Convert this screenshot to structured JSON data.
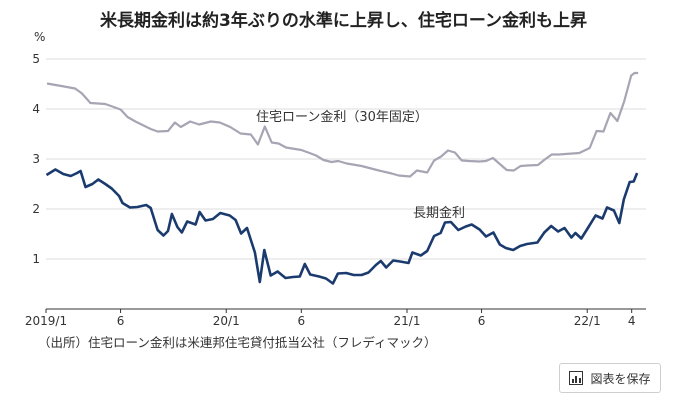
{
  "chart_data": {
    "type": "line",
    "title": "米長期金利は約3年ぶりの水準に上昇し、住宅ローン金利も上昇",
    "unit_label": "%",
    "ylim": [
      0,
      5
    ],
    "y_ticks": [
      1,
      2,
      3,
      4,
      5
    ],
    "x_range": [
      "2019-01-01",
      "2022-04-30"
    ],
    "x_ticks": [
      {
        "date": "2019-01-01",
        "label": "2019/1"
      },
      {
        "date": "2019-06-01",
        "label": "6"
      },
      {
        "date": "2020-01-01",
        "label": "20/1"
      },
      {
        "date": "2020-06-01",
        "label": "6"
      },
      {
        "date": "2021-01-01",
        "label": "21/1"
      },
      {
        "date": "2021-06-01",
        "label": "6"
      },
      {
        "date": "2022-01-01",
        "label": "22/1"
      },
      {
        "date": "2022-04-01",
        "label": "4"
      }
    ],
    "grid": "horizontal",
    "series": [
      {
        "name": "住宅ローン金利（30年固定）",
        "color": "#a7a5b4",
        "points": [
          [
            "2019-01-03",
            4.51
          ],
          [
            "2019-02-01",
            4.46
          ],
          [
            "2019-03-01",
            4.41
          ],
          [
            "2019-03-15",
            4.31
          ],
          [
            "2019-04-01",
            4.12
          ],
          [
            "2019-05-01",
            4.1
          ],
          [
            "2019-06-01",
            3.99
          ],
          [
            "2019-06-15",
            3.84
          ],
          [
            "2019-07-01",
            3.75
          ],
          [
            "2019-08-01",
            3.6
          ],
          [
            "2019-08-15",
            3.55
          ],
          [
            "2019-09-05",
            3.56
          ],
          [
            "2019-09-19",
            3.73
          ],
          [
            "2019-10-01",
            3.64
          ],
          [
            "2019-10-20",
            3.75
          ],
          [
            "2019-11-07",
            3.69
          ],
          [
            "2019-12-01",
            3.75
          ],
          [
            "2019-12-19",
            3.73
          ],
          [
            "2020-01-09",
            3.64
          ],
          [
            "2020-01-30",
            3.51
          ],
          [
            "2020-02-20",
            3.49
          ],
          [
            "2020-03-05",
            3.29
          ],
          [
            "2020-03-19",
            3.65
          ],
          [
            "2020-04-02",
            3.33
          ],
          [
            "2020-04-16",
            3.31
          ],
          [
            "2020-05-01",
            3.23
          ],
          [
            "2020-06-01",
            3.18
          ],
          [
            "2020-06-15",
            3.13
          ],
          [
            "2020-07-01",
            3.07
          ],
          [
            "2020-07-16",
            2.98
          ],
          [
            "2020-08-01",
            2.94
          ],
          [
            "2020-08-15",
            2.96
          ],
          [
            "2020-09-01",
            2.91
          ],
          [
            "2020-10-01",
            2.86
          ],
          [
            "2020-11-01",
            2.78
          ],
          [
            "2020-12-01",
            2.71
          ],
          [
            "2020-12-15",
            2.67
          ],
          [
            "2021-01-07",
            2.65
          ],
          [
            "2021-01-21",
            2.77
          ],
          [
            "2021-02-11",
            2.73
          ],
          [
            "2021-02-25",
            2.97
          ],
          [
            "2021-03-11",
            3.05
          ],
          [
            "2021-03-25",
            3.17
          ],
          [
            "2021-04-08",
            3.13
          ],
          [
            "2021-04-22",
            2.97
          ],
          [
            "2021-05-06",
            2.96
          ],
          [
            "2021-05-27",
            2.95
          ],
          [
            "2021-06-10",
            2.96
          ],
          [
            "2021-06-24",
            3.02
          ],
          [
            "2021-07-08",
            2.9
          ],
          [
            "2021-07-22",
            2.78
          ],
          [
            "2021-08-05",
            2.77
          ],
          [
            "2021-08-19",
            2.86
          ],
          [
            "2021-09-02",
            2.87
          ],
          [
            "2021-09-23",
            2.88
          ],
          [
            "2021-10-07",
            2.99
          ],
          [
            "2021-10-21",
            3.09
          ],
          [
            "2021-11-04",
            3.09
          ],
          [
            "2021-11-18",
            3.1
          ],
          [
            "2021-12-02",
            3.11
          ],
          [
            "2021-12-16",
            3.12
          ],
          [
            "2022-01-06",
            3.22
          ],
          [
            "2022-01-20",
            3.56
          ],
          [
            "2022-02-03",
            3.55
          ],
          [
            "2022-02-17",
            3.92
          ],
          [
            "2022-03-03",
            3.76
          ],
          [
            "2022-03-17",
            4.16
          ],
          [
            "2022-03-31",
            4.67
          ],
          [
            "2022-04-07",
            4.72
          ],
          [
            "2022-04-14",
            4.72
          ]
        ]
      },
      {
        "name": "長期金利",
        "color": "#1b3b6f",
        "points": [
          [
            "2019-01-02",
            2.68
          ],
          [
            "2019-01-20",
            2.79
          ],
          [
            "2019-02-05",
            2.7
          ],
          [
            "2019-02-20",
            2.66
          ],
          [
            "2019-03-05",
            2.72
          ],
          [
            "2019-03-12",
            2.76
          ],
          [
            "2019-03-22",
            2.44
          ],
          [
            "2019-04-05",
            2.5
          ],
          [
            "2019-04-17",
            2.59
          ],
          [
            "2019-05-01",
            2.5
          ],
          [
            "2019-05-14",
            2.41
          ],
          [
            "2019-05-29",
            2.26
          ],
          [
            "2019-06-05",
            2.12
          ],
          [
            "2019-06-20",
            2.03
          ],
          [
            "2019-07-05",
            2.04
          ],
          [
            "2019-07-23",
            2.08
          ],
          [
            "2019-08-01",
            2.02
          ],
          [
            "2019-08-15",
            1.58
          ],
          [
            "2019-08-27",
            1.47
          ],
          [
            "2019-09-05",
            1.56
          ],
          [
            "2019-09-13",
            1.9
          ],
          [
            "2019-09-24",
            1.64
          ],
          [
            "2019-10-03",
            1.53
          ],
          [
            "2019-10-14",
            1.75
          ],
          [
            "2019-10-31",
            1.69
          ],
          [
            "2019-11-08",
            1.94
          ],
          [
            "2019-11-20",
            1.77
          ],
          [
            "2019-12-05",
            1.8
          ],
          [
            "2019-12-20",
            1.92
          ],
          [
            "2020-01-08",
            1.87
          ],
          [
            "2020-01-20",
            1.78
          ],
          [
            "2020-01-31",
            1.51
          ],
          [
            "2020-02-12",
            1.62
          ],
          [
            "2020-02-28",
            1.13
          ],
          [
            "2020-03-09",
            0.54
          ],
          [
            "2020-03-18",
            1.18
          ],
          [
            "2020-03-31",
            0.67
          ],
          [
            "2020-04-14",
            0.75
          ],
          [
            "2020-04-30",
            0.62
          ],
          [
            "2020-05-15",
            0.64
          ],
          [
            "2020-05-29",
            0.65
          ],
          [
            "2020-06-08",
            0.9
          ],
          [
            "2020-06-19",
            0.69
          ],
          [
            "2020-07-07",
            0.65
          ],
          [
            "2020-07-21",
            0.61
          ],
          [
            "2020-08-04",
            0.51
          ],
          [
            "2020-08-14",
            0.71
          ],
          [
            "2020-08-31",
            0.72
          ],
          [
            "2020-09-15",
            0.68
          ],
          [
            "2020-10-01",
            0.68
          ],
          [
            "2020-10-15",
            0.73
          ],
          [
            "2020-10-30",
            0.88
          ],
          [
            "2020-11-09",
            0.96
          ],
          [
            "2020-11-20",
            0.83
          ],
          [
            "2020-12-04",
            0.97
          ],
          [
            "2020-12-18",
            0.95
          ],
          [
            "2021-01-04",
            0.92
          ],
          [
            "2021-01-12",
            1.13
          ],
          [
            "2021-01-29",
            1.07
          ],
          [
            "2021-02-11",
            1.16
          ],
          [
            "2021-02-25",
            1.46
          ],
          [
            "2021-03-10",
            1.52
          ],
          [
            "2021-03-19",
            1.73
          ],
          [
            "2021-03-31",
            1.74
          ],
          [
            "2021-04-15",
            1.58
          ],
          [
            "2021-04-30",
            1.65
          ],
          [
            "2021-05-12",
            1.69
          ],
          [
            "2021-05-28",
            1.59
          ],
          [
            "2021-06-10",
            1.45
          ],
          [
            "2021-06-25",
            1.53
          ],
          [
            "2021-07-08",
            1.29
          ],
          [
            "2021-07-20",
            1.22
          ],
          [
            "2021-08-04",
            1.18
          ],
          [
            "2021-08-18",
            1.26
          ],
          [
            "2021-09-01",
            1.3
          ],
          [
            "2021-09-22",
            1.33
          ],
          [
            "2021-10-06",
            1.53
          ],
          [
            "2021-10-20",
            1.66
          ],
          [
            "2021-11-03",
            1.55
          ],
          [
            "2021-11-16",
            1.62
          ],
          [
            "2021-11-30",
            1.43
          ],
          [
            "2021-12-08",
            1.52
          ],
          [
            "2021-12-20",
            1.41
          ],
          [
            "2022-01-03",
            1.63
          ],
          [
            "2022-01-18",
            1.87
          ],
          [
            "2022-02-01",
            1.81
          ],
          [
            "2022-02-10",
            2.03
          ],
          [
            "2022-02-24",
            1.97
          ],
          [
            "2022-03-07",
            1.72
          ],
          [
            "2022-03-16",
            2.19
          ],
          [
            "2022-03-28",
            2.54
          ],
          [
            "2022-04-05",
            2.55
          ],
          [
            "2022-04-12",
            2.72
          ]
        ]
      }
    ],
    "annotations": [
      {
        "text": "住宅ローン金利（30年固定）",
        "series": 0
      },
      {
        "text": "長期金利",
        "series": 1
      }
    ]
  },
  "source_note": "（出所）住宅ローン金利は米連邦住宅貸付抵当公社（フレディマック）",
  "save_button": {
    "label": "図表を保存",
    "icon": "chart-bar-icon"
  }
}
